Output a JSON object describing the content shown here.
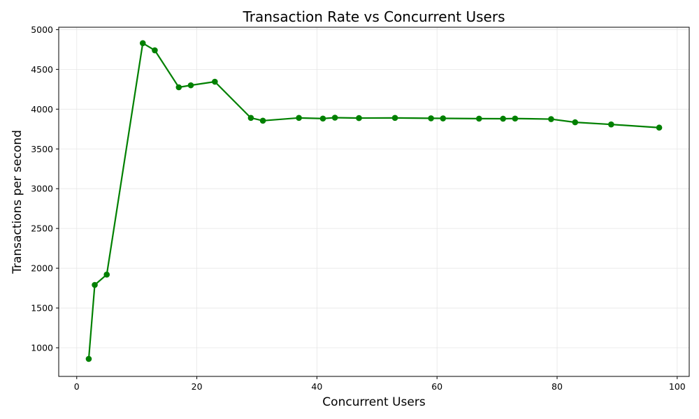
{
  "chart_data": {
    "type": "line",
    "title": "Transaction Rate vs Concurrent Users",
    "xlabel": "Concurrent Users",
    "ylabel": "Transactions per second",
    "xlim": [
      -3,
      102
    ],
    "ylim": [
      640,
      5030
    ],
    "xticks": [
      0,
      20,
      40,
      60,
      80,
      100
    ],
    "yticks": [
      1000,
      1500,
      2000,
      2500,
      3000,
      3500,
      4000,
      4500,
      5000
    ],
    "grid": true,
    "series": [
      {
        "color": "#008000",
        "marker": "circle",
        "points": [
          {
            "x": 2,
            "y": 860
          },
          {
            "x": 3,
            "y": 1790
          },
          {
            "x": 5,
            "y": 1920
          },
          {
            "x": 11,
            "y": 4830
          },
          {
            "x": 13,
            "y": 4740
          },
          {
            "x": 17,
            "y": 4275
          },
          {
            "x": 19,
            "y": 4300
          },
          {
            "x": 23,
            "y": 4345
          },
          {
            "x": 29,
            "y": 3890
          },
          {
            "x": 31,
            "y": 3855
          },
          {
            "x": 37,
            "y": 3890
          },
          {
            "x": 41,
            "y": 3882
          },
          {
            "x": 43,
            "y": 3893
          },
          {
            "x": 47,
            "y": 3888
          },
          {
            "x": 53,
            "y": 3890
          },
          {
            "x": 59,
            "y": 3885
          },
          {
            "x": 61,
            "y": 3884
          },
          {
            "x": 67,
            "y": 3881
          },
          {
            "x": 71,
            "y": 3880
          },
          {
            "x": 73,
            "y": 3882
          },
          {
            "x": 79,
            "y": 3875
          },
          {
            "x": 83,
            "y": 3835
          },
          {
            "x": 89,
            "y": 3808
          },
          {
            "x": 97,
            "y": 3768
          }
        ]
      }
    ]
  }
}
